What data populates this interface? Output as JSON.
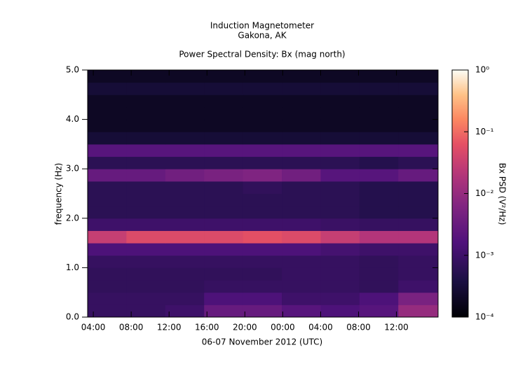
{
  "chart_data": {
    "type": "spectrogram",
    "title": "Induction Magnetometer",
    "subtitle": "Gakona, AK",
    "plot_title": "Power Spectral Density: Bx (mag north)",
    "x_label": "06-07 November 2012 (UTC)",
    "y_label": "frequency (Hz)",
    "colorbar_label": "Bx PSD (V²/Hz)",
    "colormap": "magma",
    "log_z": true,
    "xlim": [
      3.4,
      40.4
    ],
    "xticks": [
      {
        "value": 4,
        "label": "04:00"
      },
      {
        "value": 8,
        "label": "08:00"
      },
      {
        "value": 12,
        "label": "12:00"
      },
      {
        "value": 16,
        "label": "16:00"
      },
      {
        "value": 20,
        "label": "20:00"
      },
      {
        "value": 24,
        "label": "00:00"
      },
      {
        "value": 28,
        "label": "04:00"
      },
      {
        "value": 32,
        "label": "08:00"
      },
      {
        "value": 36,
        "label": "12:00"
      }
    ],
    "ylim": [
      0,
      5
    ],
    "yticks": [
      {
        "value": 0,
        "label": "0.0"
      },
      {
        "value": 1,
        "label": "1.0"
      },
      {
        "value": 2,
        "label": "2.0"
      },
      {
        "value": 3,
        "label": "3.0"
      },
      {
        "value": 4,
        "label": "4.0"
      },
      {
        "value": 5,
        "label": "5.0"
      }
    ],
    "zlim": [
      0.0001,
      1
    ],
    "zticks": [
      {
        "value": 0.0001,
        "label": "10⁻⁴"
      },
      {
        "value": 0.001,
        "label": "10⁻³"
      },
      {
        "value": 0.01,
        "label": "10⁻²"
      },
      {
        "value": 0.1,
        "label": "10⁻¹"
      },
      {
        "value": 1,
        "label": "10⁰"
      }
    ],
    "xbins": [
      3.4,
      7.5,
      11.6,
      15.7,
      19.8,
      23.9,
      28,
      32.1,
      36.2,
      40.4
    ],
    "ybins": [
      0,
      0.25,
      0.5,
      0.75,
      1,
      1.25,
      1.5,
      1.75,
      2,
      2.25,
      2.5,
      2.75,
      3,
      3.25,
      3.5,
      3.75,
      4,
      4.25,
      4.5,
      4.75,
      5
    ],
    "z": [
      [
        0.0008,
        0.0008,
        0.001,
        0.003,
        0.003,
        0.002,
        0.0015,
        0.002,
        0.01
      ],
      [
        0.0008,
        0.0008,
        0.0008,
        0.0015,
        0.0015,
        0.001,
        0.001,
        0.0015,
        0.005
      ],
      [
        0.0007,
        0.0007,
        0.0007,
        0.0008,
        0.0008,
        0.0008,
        0.0008,
        0.0007,
        0.001
      ],
      [
        0.0007,
        0.0007,
        0.0007,
        0.0007,
        0.0007,
        0.0008,
        0.0008,
        0.0007,
        0.0008
      ],
      [
        0.0008,
        0.0008,
        0.0008,
        0.0008,
        0.0008,
        0.0008,
        0.0008,
        0.0007,
        0.0008
      ],
      [
        0.0015,
        0.0015,
        0.0015,
        0.0015,
        0.0015,
        0.0015,
        0.0012,
        0.001,
        0.001
      ],
      [
        0.03,
        0.05,
        0.05,
        0.05,
        0.06,
        0.05,
        0.03,
        0.02,
        0.02
      ],
      [
        0.001,
        0.001,
        0.001,
        0.001,
        0.001,
        0.001,
        0.0009,
        0.0008,
        0.0008
      ],
      [
        0.0006,
        0.0006,
        0.0006,
        0.0006,
        0.0006,
        0.0006,
        0.0006,
        0.0005,
        0.0005
      ],
      [
        0.0006,
        0.0006,
        0.0006,
        0.0006,
        0.0006,
        0.0006,
        0.0006,
        0.0005,
        0.0005
      ],
      [
        0.0006,
        0.0006,
        0.0006,
        0.0006,
        0.0007,
        0.0006,
        0.0006,
        0.0005,
        0.0005
      ],
      [
        0.003,
        0.003,
        0.004,
        0.005,
        0.006,
        0.004,
        0.002,
        0.002,
        0.003
      ],
      [
        0.0006,
        0.0006,
        0.0006,
        0.0006,
        0.0006,
        0.0006,
        0.0006,
        0.0005,
        0.0006
      ],
      [
        0.002,
        0.002,
        0.002,
        0.002,
        0.002,
        0.002,
        0.002,
        0.002,
        0.002
      ],
      [
        0.0003,
        0.0003,
        0.0003,
        0.0003,
        0.0003,
        0.0003,
        0.0003,
        0.0003,
        0.0003
      ],
      [
        0.0002,
        0.0002,
        0.0002,
        0.0002,
        0.0002,
        0.0002,
        0.0002,
        0.0002,
        0.0002
      ],
      [
        0.0002,
        0.0002,
        0.0002,
        0.0002,
        0.0002,
        0.0002,
        0.0002,
        0.0002,
        0.0002
      ],
      [
        0.0002,
        0.0002,
        0.0002,
        0.0002,
        0.0002,
        0.0002,
        0.0002,
        0.0002,
        0.0002
      ],
      [
        0.0003,
        0.0003,
        0.0003,
        0.0003,
        0.0003,
        0.0003,
        0.0003,
        0.0003,
        0.0003
      ],
      [
        0.0002,
        0.0002,
        0.0002,
        0.0002,
        0.0002,
        0.0002,
        0.0002,
        0.0002,
        0.0002
      ]
    ]
  }
}
